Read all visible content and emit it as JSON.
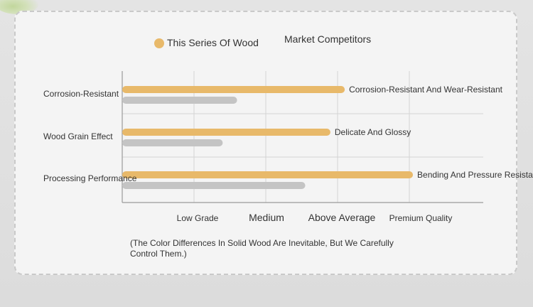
{
  "chart_data": {
    "type": "bar",
    "orientation": "horizontal",
    "categories": [
      "Corrosion-Resistant",
      "Wood Grain Effect",
      "Processing Performance"
    ],
    "x_ticks": [
      "Low Grade",
      "Medium",
      "Above Average",
      "Premium Quality"
    ],
    "xlim": [
      0,
      4
    ],
    "legend": [
      "This Series Of Wood",
      "Market Competitors"
    ],
    "series": [
      {
        "name": "This Series Of Wood",
        "values": [
          3.1,
          2.9,
          4.05
        ],
        "color": "#e8b96a"
      },
      {
        "name": "Market Competitors",
        "values": [
          1.6,
          1.4,
          2.55
        ],
        "color": "#c4c4c4"
      }
    ],
    "annotations": [
      "Corrosion-Resistant And Wear-Resistant",
      "Delicate And Glossy",
      "Bending And Pressure Resistant"
    ],
    "grid": true
  },
  "footnote": "(The Color Differences In Solid Wood Are Inevitable, But We Carefully Control Them.)"
}
